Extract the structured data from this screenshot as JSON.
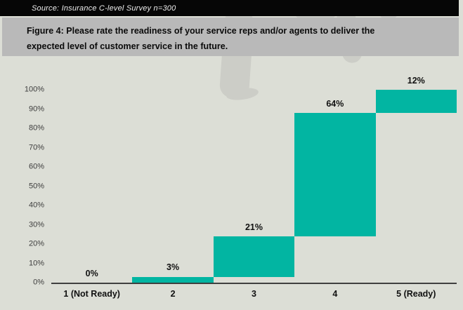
{
  "colors": {
    "accent_teal": "#02b5a2",
    "page_bg": "#dcded6",
    "band_bg": "#b9b9b9",
    "source_bar_bg": "#060606",
    "silhouette": "#cccdc7",
    "axis_text": "#3d3d3d",
    "label_text": "#111111"
  },
  "source_bar": {
    "text": "Source: Insurance C-level Survey n=300"
  },
  "title_lines": [
    "Figure 4: Please rate the readiness of your service reps and/or agents to deliver the",
    "expected level of customer service in the future."
  ],
  "chart_data": {
    "type": "bar",
    "subtype": "waterfall-cumulative",
    "title": "Figure 4: Please rate the readiness of your service reps and/or agents to deliver the expected level of customer service in the future.",
    "categories": [
      "1 (Not Ready)",
      "2",
      "3",
      "4",
      "5 (Ready)"
    ],
    "values": [
      0,
      3,
      21,
      64,
      12
    ],
    "value_labels": [
      "0%",
      "3%",
      "21%",
      "64%",
      "12%"
    ],
    "cumulative": true,
    "xlabel": "",
    "ylabel": "",
    "ylim": [
      0,
      100
    ],
    "ytick_step": 10,
    "ytick_suffix": "%",
    "grid": false,
    "legend": false,
    "bar_color": "#02b5a2"
  }
}
